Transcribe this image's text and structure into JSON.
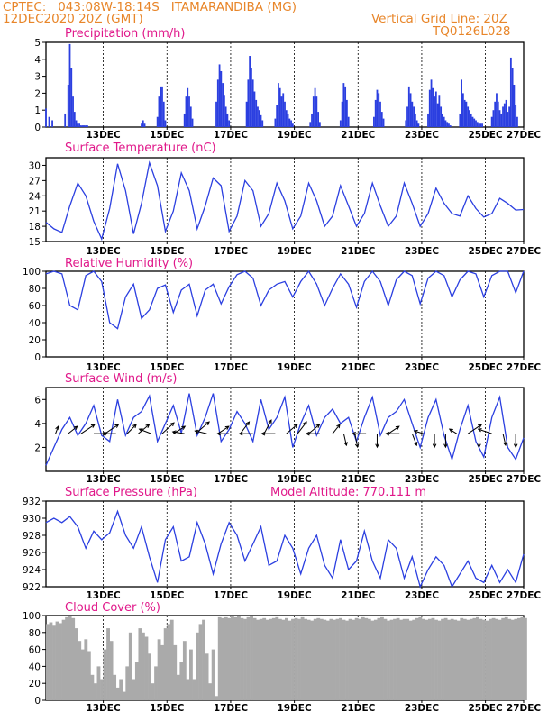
{
  "header": {
    "line1_left": "CPTEC:   043:08W-18:14S   ITAMARANDIBA (MG)",
    "line2_left": "12DEC2020 20Z (GMT)",
    "line1_right": "Vertical Grid Line: 20Z",
    "line2_right": "TQ0126L028"
  },
  "colors": {
    "header": "#e8862a",
    "title": "#e0188a",
    "series": "#2b3fe0",
    "cloud": "#aaaaaa",
    "arrow": "#000000"
  },
  "chart_data": [
    {
      "type": "bar",
      "title": "Precipitation (mm/h)",
      "ylim": [
        0,
        5
      ],
      "yticks": [
        "0",
        "1",
        "2",
        "3",
        "4",
        "5"
      ],
      "xticks": [
        "13DEC",
        "15DEC",
        "17DEC",
        "19DEC",
        "21DEC",
        "23DEC",
        "25DEC",
        "27DEC"
      ],
      "x": [
        0.0,
        0.1,
        0.2,
        0.6,
        0.7,
        0.75,
        0.8,
        0.85,
        0.9,
        0.95,
        1.0,
        1.05,
        1.1,
        1.15,
        1.2,
        1.25,
        1.3,
        3.0,
        3.05,
        3.1,
        3.5,
        3.55,
        3.6,
        3.65,
        3.7,
        3.75,
        4.35,
        4.4,
        4.45,
        4.5,
        4.55,
        4.6,
        5.35,
        5.4,
        5.45,
        5.5,
        5.55,
        5.6,
        5.65,
        5.7,
        5.75,
        6.3,
        6.35,
        6.4,
        6.45,
        6.5,
        6.55,
        6.6,
        6.65,
        6.7,
        6.75,
        6.8,
        7.2,
        7.25,
        7.3,
        7.35,
        7.4,
        7.45,
        7.5,
        7.55,
        7.6,
        7.65,
        7.7,
        7.75,
        8.3,
        8.35,
        8.4,
        8.45,
        8.5,
        8.55,
        8.6,
        9.25,
        9.3,
        9.35,
        9.4,
        9.45,
        9.5,
        10.3,
        10.35,
        10.4,
        10.45,
        10.5,
        10.55,
        10.6,
        11.3,
        11.35,
        11.4,
        11.45,
        11.5,
        11.55,
        11.6,
        11.65,
        11.7,
        12.0,
        12.05,
        12.1,
        12.15,
        12.2,
        12.25,
        12.3,
        12.35,
        12.4,
        12.45,
        12.5,
        12.55,
        12.6,
        12.65,
        12.7,
        13.0,
        13.05,
        13.1,
        13.15,
        13.2,
        13.25,
        13.3,
        13.35,
        13.4,
        13.45,
        13.5,
        13.55,
        13.6,
        13.65,
        13.7,
        14.0,
        14.05,
        14.1,
        14.15,
        14.2,
        14.25,
        14.3,
        14.35,
        14.4,
        14.45,
        14.5,
        14.55,
        14.6,
        14.65,
        14.7,
        14.75,
        14.8
      ],
      "values": [
        1.1,
        0.6,
        0.4,
        0.8,
        2.5,
        4.9,
        3.5,
        1.8,
        0.9,
        0.4,
        0.2,
        0.2,
        0.1,
        0.1,
        0.1,
        0.1,
        0.1,
        0.2,
        0.4,
        0.2,
        0.6,
        1.8,
        2.4,
        2.4,
        1.5,
        0.4,
        0.8,
        1.8,
        2.3,
        1.8,
        1.2,
        0.5,
        1.5,
        2.8,
        3.7,
        3.3,
        2.6,
        1.9,
        1.2,
        0.8,
        0.4,
        1.5,
        2.8,
        4.2,
        3.5,
        2.8,
        2.1,
        1.6,
        1.2,
        1.0,
        0.7,
        0.4,
        0.5,
        1.3,
        2.6,
        2.3,
        1.8,
        2.0,
        1.5,
        1.0,
        0.8,
        0.5,
        0.4,
        0.2,
        0.3,
        0.8,
        1.8,
        2.3,
        1.8,
        0.9,
        0.3,
        0.4,
        1.5,
        2.6,
        2.4,
        1.6,
        0.6,
        0.6,
        1.6,
        2.2,
        2.0,
        1.5,
        0.9,
        0.5,
        0.4,
        1.2,
        2.4,
        2.0,
        1.5,
        1.2,
        0.8,
        0.4,
        0.2,
        0.8,
        2.2,
        2.8,
        2.3,
        1.8,
        2.1,
        1.4,
        1.9,
        1.2,
        0.8,
        0.6,
        0.4,
        0.3,
        0.2,
        0.1,
        0.8,
        2.8,
        2.0,
        1.6,
        1.5,
        1.2,
        1.0,
        0.8,
        0.6,
        0.5,
        0.4,
        0.3,
        0.2,
        0.2,
        0.2,
        0.6,
        1.0,
        1.5,
        2.0,
        1.5,
        1.0,
        0.8,
        1.2,
        1.4,
        1.6,
        0.9,
        1.2,
        4.1,
        3.5,
        2.5,
        1.3,
        0.6
      ]
    },
    {
      "type": "line",
      "title": "Surface Temperature (nC)",
      "ylim": [
        15,
        31.5
      ],
      "yticks": [
        "15",
        "18",
        "21",
        "24",
        "27",
        "30"
      ],
      "xticks": [
        "13DEC",
        "15DEC",
        "17DEC",
        "19DEC",
        "21DEC",
        "23DEC",
        "25DEC",
        "27DEC"
      ],
      "x": [
        0.0,
        0.25,
        0.5,
        0.75,
        1.0,
        1.25,
        1.5,
        1.75,
        2.0,
        2.25,
        2.5,
        2.75,
        3.0,
        3.25,
        3.5,
        3.75,
        4.0,
        4.25,
        4.5,
        4.75,
        5.0,
        5.25,
        5.5,
        5.75,
        6.0,
        6.25,
        6.5,
        6.75,
        7.0,
        7.25,
        7.5,
        7.75,
        8.0,
        8.25,
        8.5,
        8.75,
        9.0,
        9.25,
        9.5,
        9.75,
        10.0,
        10.25,
        10.5,
        10.75,
        11.0,
        11.25,
        11.5,
        11.75,
        12.0,
        12.25,
        12.5,
        12.75,
        13.0,
        13.25,
        13.5,
        13.75,
        14.0,
        14.25,
        14.5,
        14.75,
        15.0
      ],
      "values": [
        18.8,
        17.5,
        16.8,
        22.0,
        26.5,
        24.0,
        19.0,
        15.5,
        21.5,
        30.3,
        25.0,
        16.5,
        22.5,
        30.5,
        26.0,
        17.0,
        21.0,
        28.5,
        25.0,
        17.5,
        22.0,
        27.5,
        26.0,
        17.0,
        20.0,
        27.0,
        25.0,
        18.0,
        20.5,
        26.5,
        23.0,
        17.5,
        20.0,
        26.5,
        23.0,
        18.0,
        20.0,
        26.0,
        22.0,
        18.0,
        20.5,
        26.5,
        22.0,
        18.0,
        20.0,
        26.5,
        22.5,
        18.0,
        20.5,
        25.5,
        22.5,
        20.5,
        20.0,
        24.0,
        21.5,
        19.8,
        20.5,
        23.5,
        22.5,
        21.2,
        21.3
      ]
    },
    {
      "type": "line",
      "title": "Relative Humidity (%)",
      "ylim": [
        0,
        100
      ],
      "yticks": [
        "0",
        "20",
        "40",
        "60",
        "80",
        "100"
      ],
      "xticks": [
        "13DEC",
        "15DEC",
        "17DEC",
        "19DEC",
        "21DEC",
        "23DEC",
        "25DEC",
        "27DEC"
      ],
      "x": [
        0.0,
        0.25,
        0.5,
        0.75,
        1.0,
        1.25,
        1.5,
        1.75,
        2.0,
        2.25,
        2.5,
        2.75,
        3.0,
        3.25,
        3.5,
        3.75,
        4.0,
        4.25,
        4.5,
        4.75,
        5.0,
        5.25,
        5.5,
        5.75,
        6.0,
        6.25,
        6.5,
        6.75,
        7.0,
        7.25,
        7.5,
        7.75,
        8.0,
        8.25,
        8.5,
        8.75,
        9.0,
        9.25,
        9.5,
        9.75,
        10.0,
        10.25,
        10.5,
        10.75,
        11.0,
        11.25,
        11.5,
        11.75,
        12.0,
        12.25,
        12.5,
        12.75,
        13.0,
        13.25,
        13.5,
        13.75,
        14.0,
        14.25,
        14.5,
        14.75,
        15.0
      ],
      "values": [
        97.0,
        100.0,
        97.0,
        60.0,
        55.0,
        95.0,
        100.0,
        88.0,
        40.0,
        33.0,
        70.0,
        85.0,
        45.0,
        55.0,
        80.0,
        84.0,
        52.0,
        78.0,
        85.0,
        48.0,
        78.0,
        85.0,
        62.0,
        82.0,
        96.0,
        100.0,
        92.0,
        60.0,
        78.0,
        85.0,
        88.0,
        70.0,
        88.0,
        100.0,
        85.0,
        60.0,
        80.0,
        97.0,
        85.0,
        58.0,
        88.0,
        100.0,
        88.0,
        60.0,
        90.0,
        100.0,
        95.0,
        62.0,
        92.0,
        100.0,
        95.0,
        70.0,
        90.0,
        100.0,
        97.0,
        70.0,
        95.0,
        100.0,
        100.0,
        75.0,
        100.0
      ]
    },
    {
      "type": "line",
      "title": "Surface Wind (m/s)",
      "ylim": [
        0,
        7
      ],
      "yticks": [
        "2",
        "4",
        "6"
      ],
      "xticks": [
        "13DEC",
        "15DEC",
        "17DEC",
        "19DEC",
        "21DEC",
        "23DEC",
        "25DEC",
        "27DEC"
      ],
      "x": [
        0.0,
        0.25,
        0.5,
        0.75,
        1.0,
        1.25,
        1.5,
        1.75,
        2.0,
        2.25,
        2.5,
        2.75,
        3.0,
        3.25,
        3.5,
        3.75,
        4.0,
        4.25,
        4.5,
        4.75,
        5.0,
        5.25,
        5.5,
        5.75,
        6.0,
        6.25,
        6.5,
        6.75,
        7.0,
        7.25,
        7.5,
        7.75,
        8.0,
        8.25,
        8.5,
        8.75,
        9.0,
        9.25,
        9.5,
        9.75,
        10.0,
        10.25,
        10.5,
        10.75,
        11.0,
        11.25,
        11.5,
        11.75,
        12.0,
        12.25,
        12.5,
        12.75,
        13.0,
        13.25,
        13.5,
        13.75,
        14.0,
        14.25,
        14.5,
        14.75,
        15.0
      ],
      "values": [
        0.5,
        2.0,
        3.5,
        4.5,
        3.0,
        4.0,
        5.5,
        3.0,
        2.5,
        6.0,
        3.0,
        4.5,
        5.0,
        6.3,
        2.5,
        4.0,
        5.5,
        3.2,
        6.5,
        3.0,
        4.5,
        6.5,
        2.5,
        3.5,
        5.0,
        4.0,
        2.5,
        6.0,
        3.5,
        4.5,
        6.2,
        2.0,
        4.0,
        5.5,
        3.0,
        4.5,
        5.2,
        4.0,
        4.5,
        2.5,
        4.5,
        6.2,
        3.0,
        4.5,
        5.0,
        6.0,
        4.0,
        2.0,
        4.5,
        6.0,
        3.0,
        1.0,
        3.5,
        5.5,
        2.5,
        1.2,
        4.5,
        6.2,
        2.0,
        1.0,
        2.8
      ],
      "vectors": {
        "x": [
          0.3,
          0.7,
          1.1,
          1.5,
          1.85,
          2.2,
          2.55,
          2.9,
          3.3,
          3.65,
          4.0,
          4.35,
          4.7,
          5.05,
          5.4,
          5.75,
          6.1,
          6.5,
          6.85,
          7.2,
          7.55,
          7.9,
          8.25,
          8.6,
          9.0,
          9.35,
          9.7,
          10.05,
          10.4,
          10.75,
          11.1,
          11.5,
          11.85,
          12.2,
          12.55,
          12.9,
          13.25,
          13.6,
          14.0,
          14.35,
          14.75
        ],
        "u": [
          0.3,
          1.0,
          1.5,
          1.5,
          1.5,
          -1.5,
          1.0,
          1.2,
          -1.3,
          1.3,
          1.3,
          -1.3,
          1.5,
          -1.3,
          1.2,
          -1.3,
          1.0,
          -1.5,
          0.8,
          -1.5,
          1.2,
          1.0,
          1.2,
          -1.5,
          0.8,
          0.3,
          0.3,
          -1.5,
          0.0,
          1.2,
          -1.5,
          0.5,
          -1.0,
          0.0,
          0.0,
          -0.8,
          1.5,
          0.0,
          -1.5,
          0.3,
          0.0
        ],
        "v": [
          0.8,
          0.8,
          1.0,
          0.0,
          1.0,
          0.0,
          1.0,
          1.0,
          0.5,
          1.2,
          0.8,
          0.2,
          1.3,
          0.3,
          0.8,
          0.0,
          1.3,
          0.0,
          1.5,
          0.0,
          1.0,
          1.3,
          1.0,
          0.0,
          1.0,
          -1.3,
          -1.5,
          0.0,
          -1.5,
          0.8,
          0.0,
          -1.3,
          0.3,
          -1.5,
          -1.5,
          0.5,
          1.0,
          -1.5,
          0.5,
          -1.3,
          -1.5
        ]
      }
    },
    {
      "type": "line",
      "title": "Surface Pressure (hPa)",
      "subtitle": "Model Altitude: 770.111 m",
      "ylim": [
        922,
        932
      ],
      "yticks": [
        "922",
        "924",
        "926",
        "928",
        "930",
        "932"
      ],
      "xticks": [
        "13DEC",
        "15DEC",
        "17DEC",
        "19DEC",
        "21DEC",
        "23DEC",
        "25DEC",
        "27DEC"
      ],
      "x": [
        0.0,
        0.25,
        0.5,
        0.75,
        1.0,
        1.25,
        1.5,
        1.75,
        2.0,
        2.25,
        2.5,
        2.75,
        3.0,
        3.25,
        3.5,
        3.75,
        4.0,
        4.25,
        4.5,
        4.75,
        5.0,
        5.25,
        5.5,
        5.75,
        6.0,
        6.25,
        6.5,
        6.75,
        7.0,
        7.25,
        7.5,
        7.75,
        8.0,
        8.25,
        8.5,
        8.75,
        9.0,
        9.25,
        9.5,
        9.75,
        10.0,
        10.25,
        10.5,
        10.75,
        11.0,
        11.25,
        11.5,
        11.75,
        12.0,
        12.25,
        12.5,
        12.75,
        13.0,
        13.25,
        13.5,
        13.75,
        14.0,
        14.25,
        14.5,
        14.75,
        15.0
      ],
      "values": [
        929.5,
        930.0,
        929.5,
        930.2,
        929.0,
        926.5,
        928.5,
        927.5,
        928.3,
        930.8,
        928.0,
        926.5,
        929.0,
        925.5,
        922.5,
        927.5,
        929.0,
        925.0,
        925.5,
        929.5,
        927.0,
        923.5,
        927.0,
        929.5,
        928.0,
        925.0,
        927.0,
        929.0,
        924.5,
        925.0,
        928.0,
        926.5,
        923.5,
        926.5,
        928.0,
        924.5,
        923.0,
        927.5,
        924.0,
        925.0,
        928.5,
        925.0,
        923.0,
        927.5,
        926.5,
        923.0,
        925.5,
        922.0,
        924.0,
        925.5,
        924.5,
        922.0,
        923.5,
        925.0,
        923.0,
        922.5,
        924.5,
        922.5,
        924.0,
        922.5,
        925.8
      ]
    },
    {
      "type": "area",
      "title": "Cloud Cover (%)",
      "ylim": [
        0,
        100
      ],
      "yticks": [
        "0",
        "20",
        "40",
        "60",
        "80",
        "100"
      ],
      "xticks": [
        "13DEC",
        "15DEC",
        "17DEC",
        "19DEC",
        "21DEC",
        "23DEC",
        "25DEC",
        "27DEC"
      ],
      "x": [
        0.0,
        0.1,
        0.2,
        0.3,
        0.4,
        0.5,
        0.6,
        0.7,
        0.8,
        0.9,
        1.0,
        1.1,
        1.2,
        1.3,
        1.4,
        1.5,
        1.6,
        1.7,
        1.8,
        1.9,
        2.0,
        2.1,
        2.2,
        2.3,
        2.4,
        2.5,
        2.6,
        2.7,
        2.8,
        2.9,
        3.0,
        3.1,
        3.2,
        3.3,
        3.4,
        3.5,
        3.6,
        3.7,
        3.8,
        3.9,
        4.0,
        4.1,
        4.2,
        4.3,
        4.4,
        4.5,
        4.6,
        4.7,
        4.8,
        4.9,
        5.0,
        5.1,
        5.2,
        5.3,
        5.4,
        5.5,
        5.6,
        5.7,
        5.8,
        5.9,
        6.0,
        6.1,
        6.2,
        6.3,
        6.4,
        6.5,
        6.6,
        6.7,
        6.8,
        6.9,
        7.0,
        7.1,
        7.2,
        7.3,
        7.4,
        7.5,
        7.6,
        7.7,
        7.8,
        7.9,
        8.0,
        8.1,
        8.2,
        8.3,
        8.4,
        8.5,
        8.6,
        8.7,
        8.8,
        8.9,
        9.0,
        9.1,
        9.2,
        9.3,
        9.4,
        9.5,
        9.6,
        9.7,
        9.8,
        9.9,
        10.0,
        10.1,
        10.2,
        10.3,
        10.4,
        10.5,
        10.6,
        10.7,
        10.8,
        10.9,
        11.0,
        11.1,
        11.2,
        11.3,
        11.4,
        11.5,
        11.6,
        11.7,
        11.8,
        11.9,
        12.0,
        12.1,
        12.2,
        12.3,
        12.4,
        12.5,
        12.6,
        12.7,
        12.8,
        12.9,
        13.0,
        13.1,
        13.2,
        13.3,
        13.4,
        13.5,
        13.6,
        13.7,
        13.8,
        13.9,
        14.0,
        14.1,
        14.2,
        14.3,
        14.4,
        14.5,
        14.6,
        14.7,
        14.8,
        14.9,
        15.0
      ],
      "values": [
        90,
        92,
        88,
        93,
        91,
        95,
        98,
        99,
        97,
        85,
        70,
        60,
        72,
        58,
        30,
        20,
        40,
        25,
        60,
        85,
        70,
        30,
        15,
        25,
        10,
        40,
        80,
        25,
        45,
        85,
        80,
        75,
        55,
        20,
        40,
        72,
        65,
        85,
        90,
        95,
        65,
        30,
        45,
        70,
        25,
        60,
        25,
        80,
        90,
        95,
        55,
        20,
        60,
        5,
        98,
        97,
        98,
        97,
        99,
        98,
        99,
        97,
        96,
        98,
        99,
        97,
        95,
        96,
        97,
        95,
        96,
        97,
        98,
        96,
        95,
        97,
        94,
        96,
        97,
        96,
        98,
        96,
        95,
        94,
        96,
        97,
        96,
        95,
        94,
        96,
        95,
        96,
        97,
        95,
        94,
        96,
        95,
        97,
        96,
        98,
        97,
        96,
        94,
        95,
        97,
        98,
        96,
        94,
        95,
        96,
        97,
        95,
        96,
        96,
        94,
        95,
        97,
        98,
        96,
        95,
        96,
        97,
        95,
        94,
        96,
        97,
        95,
        96,
        95,
        94,
        97,
        96,
        95,
        96,
        97,
        98,
        96,
        95,
        94,
        96,
        97,
        96,
        95,
        97,
        98,
        96,
        95,
        96,
        97,
        98,
        97
      ]
    }
  ]
}
